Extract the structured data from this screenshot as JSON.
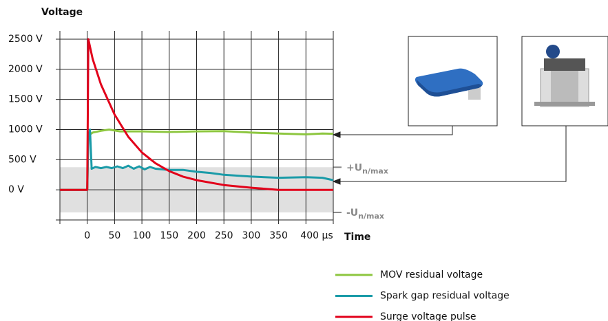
{
  "chart_data": {
    "type": "line",
    "y_title": "Voltage",
    "x_title": "Time",
    "xlim": [
      -50,
      450
    ],
    "ylim": [
      -500,
      2500
    ],
    "xticks": [
      0,
      50,
      100,
      150,
      200,
      250,
      300,
      350,
      {
        "value": 400,
        "label": "400 µs"
      }
    ],
    "yticks": [
      {
        "value": 0,
        "label": "0 V"
      },
      {
        "value": 500,
        "label": "500 V"
      },
      {
        "value": 1000,
        "label": "1000 V"
      },
      {
        "value": 1500,
        "label": "1500 V"
      },
      {
        "value": 2000,
        "label": "2000 V"
      },
      {
        "value": 2500,
        "label": "2500 V"
      }
    ],
    "grid": true,
    "band": {
      "upper": 375,
      "lower": -375,
      "color": "#e0e0e0",
      "upper_label": "+U",
      "upper_sub": "n/max",
      "lower_label": "-U",
      "lower_sub": "n/max"
    },
    "series": [
      {
        "name": "MOV residual voltage",
        "color": "#8dc63f",
        "x": [
          -50,
          0,
          2,
          10,
          25,
          40,
          60,
          100,
          150,
          200,
          250,
          300,
          350,
          400,
          430,
          450
        ],
        "values": [
          0,
          0,
          900,
          950,
          980,
          1000,
          970,
          970,
          960,
          970,
          975,
          950,
          935,
          920,
          935,
          930
        ]
      },
      {
        "name": "Spark gap residual voltage",
        "color": "#1a9ba8",
        "x": [
          -50,
          0,
          2,
          5,
          8,
          15,
          25,
          35,
          45,
          55,
          65,
          75,
          85,
          95,
          105,
          115,
          125,
          150,
          175,
          200,
          225,
          250,
          300,
          350,
          400,
          430,
          450
        ],
        "values": [
          0,
          0,
          850,
          1000,
          350,
          380,
          360,
          380,
          360,
          390,
          360,
          400,
          350,
          390,
          340,
          380,
          350,
          330,
          330,
          300,
          280,
          250,
          220,
          200,
          210,
          200,
          160
        ]
      },
      {
        "name": "Surge voltage pulse",
        "color": "#e2001a",
        "x": [
          -50,
          0,
          2,
          10,
          25,
          50,
          75,
          100,
          125,
          150,
          175,
          200,
          250,
          300,
          350,
          400,
          450
        ],
        "values": [
          0,
          0,
          2500,
          2170,
          1750,
          1250,
          880,
          620,
          440,
          310,
          220,
          160,
          80,
          35,
          0,
          0,
          0
        ]
      }
    ]
  }
}
